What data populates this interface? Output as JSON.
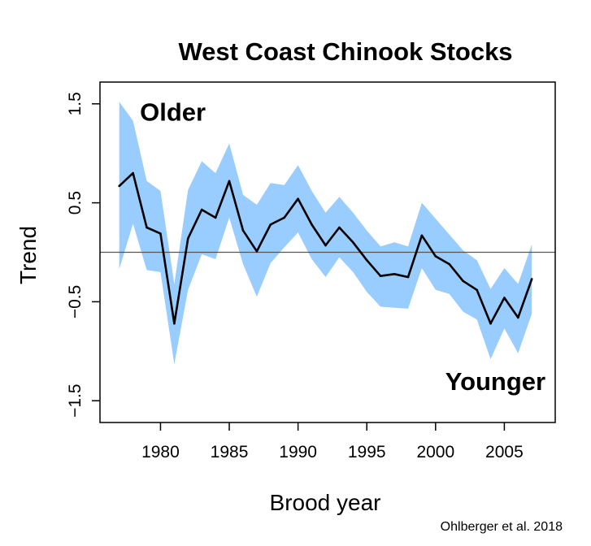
{
  "chart_data": {
    "type": "line",
    "title": "West Coast Chinook Stocks",
    "xlabel": "Brood year",
    "ylabel": "Trend",
    "xlim": [
      1975.6,
      2008.7
    ],
    "ylim": [
      -1.72,
      1.72
    ],
    "x_ticks": [
      1980,
      1985,
      1990,
      1995,
      2000,
      2005
    ],
    "x_tick_labels": [
      "1980",
      "1985",
      "1990",
      "1995",
      "2000",
      "2005"
    ],
    "y_ticks": [
      1.5,
      0.5,
      -0.5,
      -1.5
    ],
    "y_tick_labels": [
      "1.5",
      "0.5",
      "−0.5",
      "−1.5"
    ],
    "reference_line": 0,
    "band_color": "#99ccff",
    "line_color": "#000000",
    "annotations": [
      {
        "text": "Older",
        "x": 1978.5,
        "y": 1.33
      },
      {
        "text": "Younger",
        "x": 2000.7,
        "y": -1.39
      }
    ],
    "source": "Ohlberger et al. 2018",
    "series": [
      {
        "x": [
          1977,
          1978,
          1979,
          1980,
          1981,
          1982,
          1983,
          1984,
          1985,
          1986,
          1987,
          1988,
          1989,
          1990,
          1991,
          1992,
          1993,
          1994,
          1995,
          1996,
          1997,
          1998,
          1999,
          2000,
          2001,
          2002,
          2003,
          2004,
          2005,
          2006,
          2007
        ],
        "values": [
          0.67,
          0.8,
          0.25,
          0.19,
          -0.72,
          0.14,
          0.43,
          0.35,
          0.72,
          0.22,
          0.01,
          0.28,
          0.35,
          0.54,
          0.28,
          0.07,
          0.25,
          0.1,
          -0.08,
          -0.24,
          -0.22,
          -0.25,
          0.17,
          -0.04,
          -0.12,
          -0.29,
          -0.38,
          -0.72,
          -0.46,
          -0.66,
          -0.27
        ],
        "upper": [
          1.52,
          1.33,
          0.72,
          0.62,
          -0.32,
          0.63,
          0.92,
          0.8,
          1.1,
          0.58,
          0.48,
          0.7,
          0.68,
          0.88,
          0.62,
          0.4,
          0.56,
          0.4,
          0.22,
          0.06,
          0.1,
          0.06,
          0.5,
          0.34,
          0.18,
          0.02,
          -0.08,
          -0.37,
          -0.16,
          -0.32,
          0.08
        ],
        "lower": [
          -0.17,
          0.29,
          -0.18,
          -0.2,
          -1.13,
          -0.38,
          -0.02,
          -0.07,
          0.35,
          -0.12,
          -0.45,
          -0.11,
          0.05,
          0.2,
          -0.07,
          -0.25,
          -0.05,
          -0.2,
          -0.4,
          -0.55,
          -0.56,
          -0.57,
          -0.16,
          -0.38,
          -0.42,
          -0.6,
          -0.68,
          -1.08,
          -0.77,
          -1.02,
          -0.62
        ]
      }
    ]
  }
}
